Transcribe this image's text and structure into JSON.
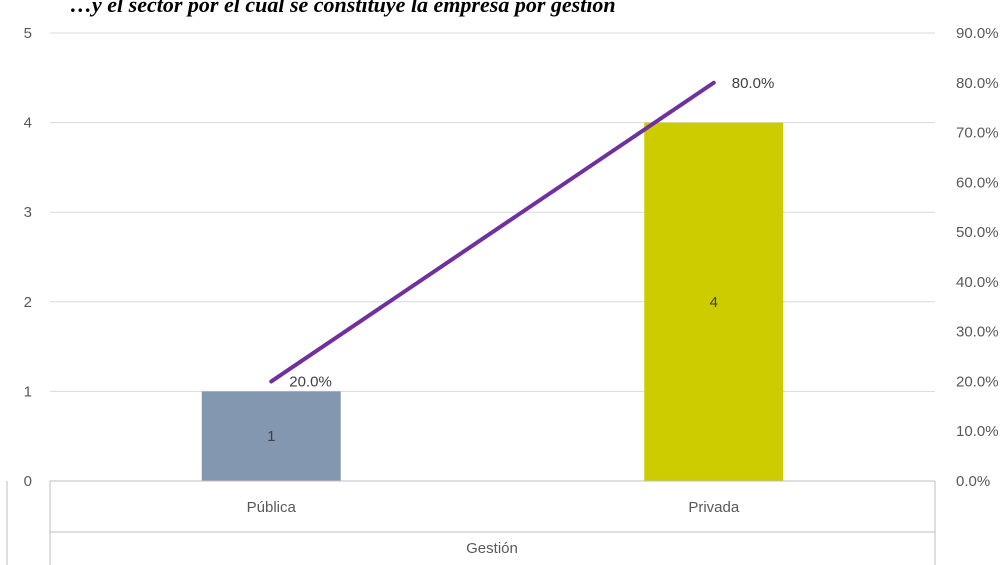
{
  "header_fragment": "…y el sector por el cual se constituye la empresa por gestión",
  "chart_data": {
    "type": "bar",
    "categories": [
      "Pública",
      "Privada"
    ],
    "series": [
      {
        "kind": "bar",
        "values": [
          1,
          4
        ],
        "labels": [
          "1",
          "4"
        ],
        "colors": [
          "#8497B0",
          "#CCCC00"
        ]
      },
      {
        "kind": "line",
        "axis": "right",
        "values": [
          20.0,
          80.0
        ],
        "labels": [
          "20.0%",
          "80.0%"
        ],
        "color": "#7030A0"
      }
    ],
    "xlabel": "Gestión",
    "ylabel": "",
    "ylim": [
      0,
      5
    ],
    "y_ticks": [
      "0",
      "1",
      "2",
      "3",
      "4",
      "5"
    ],
    "y2lim": [
      0,
      90
    ],
    "y2_ticks": [
      "0.0%",
      "10.0%",
      "20.0%",
      "30.0%",
      "40.0%",
      "50.0%",
      "60.0%",
      "70.0%",
      "80.0%",
      "90.0%"
    ],
    "grid": true,
    "legend": "none"
  }
}
